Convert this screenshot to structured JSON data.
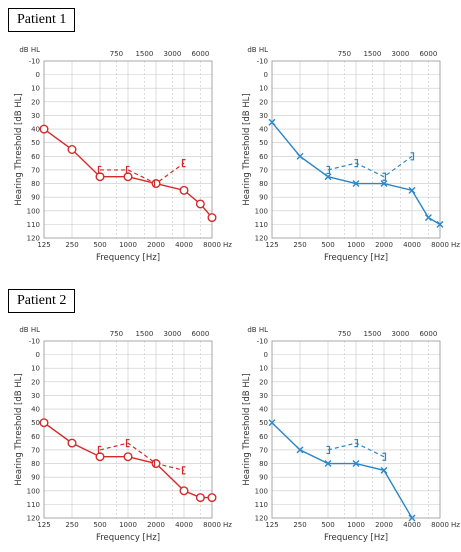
{
  "patients": [
    {
      "label": "Patient 1"
    },
    {
      "label": "Patient 2"
    }
  ],
  "chart_data": [
    {
      "type": "line",
      "title": "",
      "patient": "Patient 1",
      "ear": "right",
      "color": "#d42a2a",
      "marker": "circle",
      "bone_marker": "[",
      "ylabel": "Hearing Threshold [dB HL]",
      "xlabel": "Frequency [Hz]",
      "unit_label": "dB HL",
      "x_unit": "Hz",
      "x_ticks": [
        125,
        250,
        500,
        1000,
        2000,
        4000,
        8000
      ],
      "top_ticks": [
        750,
        1500,
        3000,
        6000
      ],
      "ylim": [
        -10,
        120
      ],
      "y_ticks": [
        -10,
        0,
        10,
        20,
        30,
        40,
        50,
        60,
        70,
        80,
        90,
        100,
        110,
        120
      ],
      "grid": true,
      "y_inverted": true,
      "series": [
        {
          "x": [
            125,
            250,
            500,
            1000,
            2000,
            4000,
            6000,
            8000
          ],
          "y": [
            40,
            55,
            75,
            75,
            80,
            85,
            95,
            105
          ]
        },
        {
          "x": [
            500,
            1000,
            2000,
            4000
          ],
          "y": [
            70,
            70,
            80,
            65
          ]
        }
      ]
    },
    {
      "type": "line",
      "title": "",
      "patient": "Patient 1",
      "ear": "left",
      "color": "#2a86c8",
      "marker": "x",
      "bone_marker": "]",
      "ylabel": "Hearing Threshold [dB HL]",
      "xlabel": "Frequency [Hz]",
      "unit_label": "dB HL",
      "x_unit": "Hz",
      "x_ticks": [
        125,
        250,
        500,
        1000,
        2000,
        4000,
        8000
      ],
      "top_ticks": [
        750,
        1500,
        3000,
        6000
      ],
      "ylim": [
        -10,
        120
      ],
      "y_ticks": [
        -10,
        0,
        10,
        20,
        30,
        40,
        50,
        60,
        70,
        80,
        90,
        100,
        110,
        120
      ],
      "grid": true,
      "y_inverted": true,
      "series": [
        {
          "x": [
            125,
            250,
            500,
            1000,
            2000,
            4000,
            6000,
            8000
          ],
          "y": [
            35,
            60,
            75,
            80,
            80,
            85,
            105,
            110
          ]
        },
        {
          "x": [
            500,
            1000,
            2000,
            4000
          ],
          "y": [
            70,
            65,
            75,
            60
          ]
        }
      ]
    },
    {
      "type": "line",
      "title": "",
      "patient": "Patient 2",
      "ear": "right",
      "color": "#d42a2a",
      "marker": "circle",
      "bone_marker": "[",
      "ylabel": "Hearing Threshold [dB HL]",
      "xlabel": "Frequency [Hz]",
      "unit_label": "dB HL",
      "x_unit": "Hz",
      "x_ticks": [
        125,
        250,
        500,
        1000,
        2000,
        4000,
        8000
      ],
      "top_ticks": [
        750,
        1500,
        3000,
        6000
      ],
      "ylim": [
        -10,
        120
      ],
      "y_ticks": [
        -10,
        0,
        10,
        20,
        30,
        40,
        50,
        60,
        70,
        80,
        90,
        100,
        110,
        120
      ],
      "grid": true,
      "y_inverted": true,
      "series": [
        {
          "x": [
            125,
            250,
            500,
            1000,
            2000,
            4000,
            6000,
            8000
          ],
          "y": [
            50,
            65,
            75,
            75,
            80,
            100,
            105,
            105
          ]
        },
        {
          "x": [
            500,
            1000,
            2000,
            4000
          ],
          "y": [
            70,
            65,
            80,
            85
          ]
        }
      ]
    },
    {
      "type": "line",
      "title": "",
      "patient": "Patient 2",
      "ear": "left",
      "color": "#2a86c8",
      "marker": "x",
      "bone_marker": "]",
      "ylabel": "Hearing Threshold [dB HL]",
      "xlabel": "Frequency [Hz]",
      "unit_label": "dB HL",
      "x_unit": "Hz",
      "x_ticks": [
        125,
        250,
        500,
        1000,
        2000,
        4000,
        8000
      ],
      "top_ticks": [
        750,
        1500,
        3000,
        6000
      ],
      "ylim": [
        -10,
        120
      ],
      "y_ticks": [
        -10,
        0,
        10,
        20,
        30,
        40,
        50,
        60,
        70,
        80,
        90,
        100,
        110,
        120
      ],
      "grid": true,
      "y_inverted": true,
      "series": [
        {
          "x": [
            125,
            250,
            500,
            1000,
            2000,
            4000
          ],
          "y": [
            50,
            70,
            80,
            80,
            85,
            120
          ]
        },
        {
          "x": [
            500,
            1000,
            2000
          ],
          "y": [
            70,
            65,
            75
          ]
        }
      ]
    }
  ]
}
